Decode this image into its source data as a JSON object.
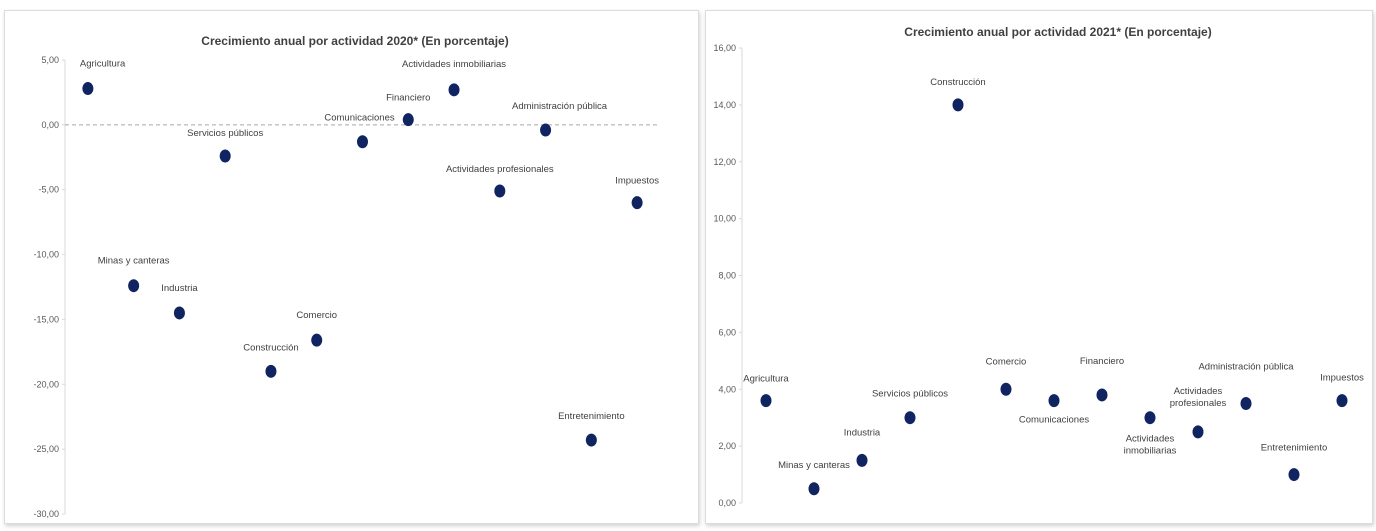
{
  "chart_data": [
    {
      "type": "scatter",
      "title": "Crecimiento anual por actividad 2020* (En porcentaje)",
      "ylim": [
        -30,
        5
      ],
      "yticks": [
        5,
        0,
        -5,
        -10,
        -15,
        -20,
        -25,
        -30
      ],
      "ytick_labels": [
        "5,00",
        "0,00",
        "-5,00",
        "-10,00",
        "-15,00",
        "-20,00",
        "-25,00",
        "-30,00"
      ],
      "zero_line": true,
      "grid": false,
      "marker_color": "#0f2460",
      "points": [
        {
          "label": "Agricultura",
          "x": 1,
          "y": 2.8
        },
        {
          "label": "Minas y canteras",
          "x": 2,
          "y": -12.4
        },
        {
          "label": "Industria",
          "x": 3,
          "y": -14.5
        },
        {
          "label": "Servicios públicos",
          "x": 4,
          "y": -2.4
        },
        {
          "label": "Construcción",
          "x": 5,
          "y": -19.0
        },
        {
          "label": "Comercio",
          "x": 6,
          "y": -16.6
        },
        {
          "label": "Comunicaciones",
          "x": 7,
          "y": -1.3
        },
        {
          "label": "Financiero",
          "x": 8,
          "y": 0.4
        },
        {
          "label": "Actividades inmobiliarias",
          "x": 9,
          "y": 2.7
        },
        {
          "label": "Actividades profesionales",
          "x": 10,
          "y": -5.1
        },
        {
          "label": "Administración pública",
          "x": 11,
          "y": -0.4
        },
        {
          "label": "Entretenimiento",
          "x": 12,
          "y": -24.3
        },
        {
          "label": "Impuestos",
          "x": 13,
          "y": -6.0
        }
      ]
    },
    {
      "type": "scatter",
      "title": "Crecimiento anual por actividad 2021* (En porcentaje)",
      "ylim": [
        0,
        16
      ],
      "yticks": [
        16,
        14,
        12,
        10,
        8,
        6,
        4,
        2,
        0
      ],
      "ytick_labels": [
        "16,00",
        "14,00",
        "12,00",
        "10,00",
        "8,00",
        "6,00",
        "4,00",
        "2,00",
        "0,00"
      ],
      "zero_line": false,
      "grid": false,
      "marker_color": "#0f2460",
      "points": [
        {
          "label": "Agricultura",
          "x": 1,
          "y": 3.6
        },
        {
          "label": "Minas y canteras",
          "x": 2,
          "y": 0.5
        },
        {
          "label": "Industria",
          "x": 3,
          "y": 1.5
        },
        {
          "label": "Servicios públicos",
          "x": 4,
          "y": 3.0
        },
        {
          "label": "Construcción",
          "x": 5,
          "y": 14.0
        },
        {
          "label": "Comercio",
          "x": 6,
          "y": 4.0
        },
        {
          "label": "Comunicaciones",
          "x": 7,
          "y": 3.6
        },
        {
          "label": "Financiero",
          "x": 8,
          "y": 3.8
        },
        {
          "label": "Actividades inmobiliarias",
          "x": 9,
          "y": 3.0
        },
        {
          "label": "Actividades profesionales",
          "x": 10,
          "y": 2.5
        },
        {
          "label": "Administración pública",
          "x": 11,
          "y": 3.5
        },
        {
          "label": "Entretenimiento",
          "x": 12,
          "y": 1.0
        },
        {
          "label": "Impuestos",
          "x": 13,
          "y": 3.6
        }
      ]
    }
  ]
}
